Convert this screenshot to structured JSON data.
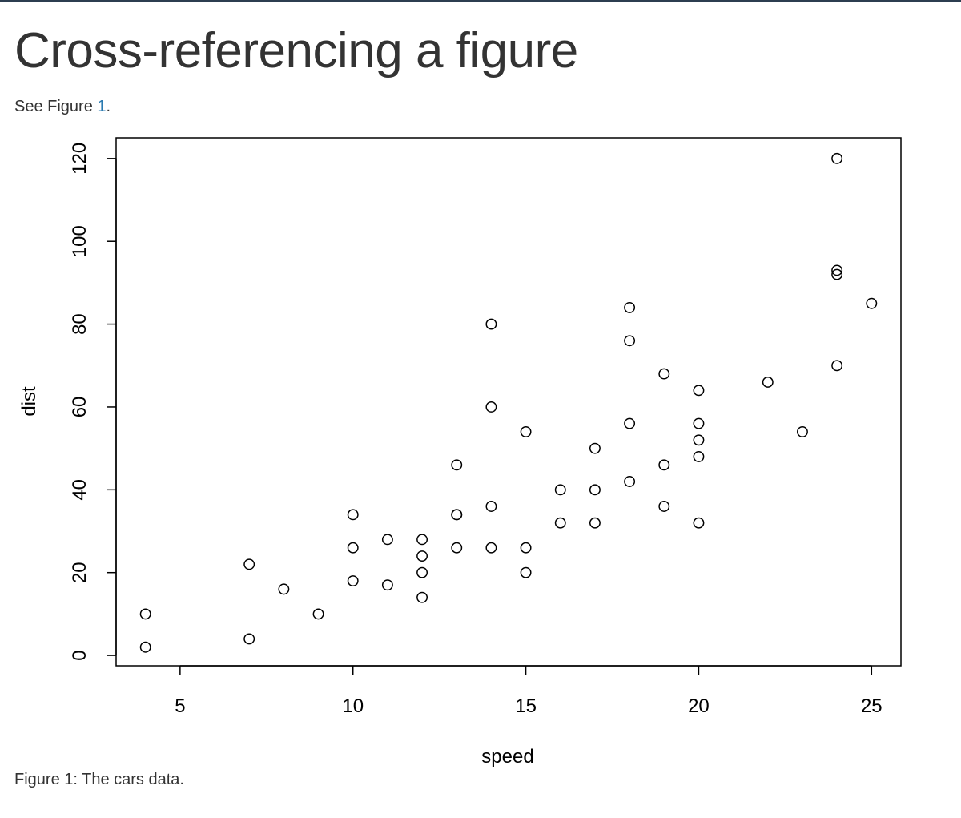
{
  "page": {
    "title": "Cross-referencing a figure",
    "intro_prefix": "See Figure ",
    "intro_link": "1",
    "intro_suffix": ".",
    "caption": "Figure 1: The cars data."
  },
  "chart_data": {
    "type": "scatter",
    "xlabel": "speed",
    "ylabel": "dist",
    "xlim": [
      3.15,
      25.85
    ],
    "ylim": [
      -2.5,
      125
    ],
    "xticks": [
      5,
      10,
      15,
      20,
      25
    ],
    "yticks": [
      0,
      20,
      40,
      60,
      80,
      100,
      120
    ],
    "grid": false,
    "marker": "open-circle",
    "points": [
      [
        4,
        2
      ],
      [
        4,
        10
      ],
      [
        7,
        4
      ],
      [
        7,
        22
      ],
      [
        8,
        16
      ],
      [
        9,
        10
      ],
      [
        10,
        18
      ],
      [
        10,
        26
      ],
      [
        10,
        34
      ],
      [
        11,
        17
      ],
      [
        11,
        28
      ],
      [
        12,
        14
      ],
      [
        12,
        20
      ],
      [
        12,
        24
      ],
      [
        12,
        28
      ],
      [
        13,
        26
      ],
      [
        13,
        34
      ],
      [
        13,
        34
      ],
      [
        13,
        46
      ],
      [
        14,
        26
      ],
      [
        14,
        36
      ],
      [
        14,
        60
      ],
      [
        14,
        80
      ],
      [
        15,
        20
      ],
      [
        15,
        26
      ],
      [
        15,
        54
      ],
      [
        16,
        32
      ],
      [
        16,
        40
      ],
      [
        17,
        32
      ],
      [
        17,
        40
      ],
      [
        17,
        50
      ],
      [
        18,
        42
      ],
      [
        18,
        56
      ],
      [
        18,
        76
      ],
      [
        18,
        84
      ],
      [
        19,
        36
      ],
      [
        19,
        46
      ],
      [
        19,
        68
      ],
      [
        20,
        32
      ],
      [
        20,
        48
      ],
      [
        20,
        52
      ],
      [
        20,
        56
      ],
      [
        20,
        64
      ],
      [
        22,
        66
      ],
      [
        23,
        54
      ],
      [
        24,
        70
      ],
      [
        24,
        92
      ],
      [
        24,
        93
      ],
      [
        24,
        120
      ],
      [
        25,
        85
      ]
    ]
  }
}
